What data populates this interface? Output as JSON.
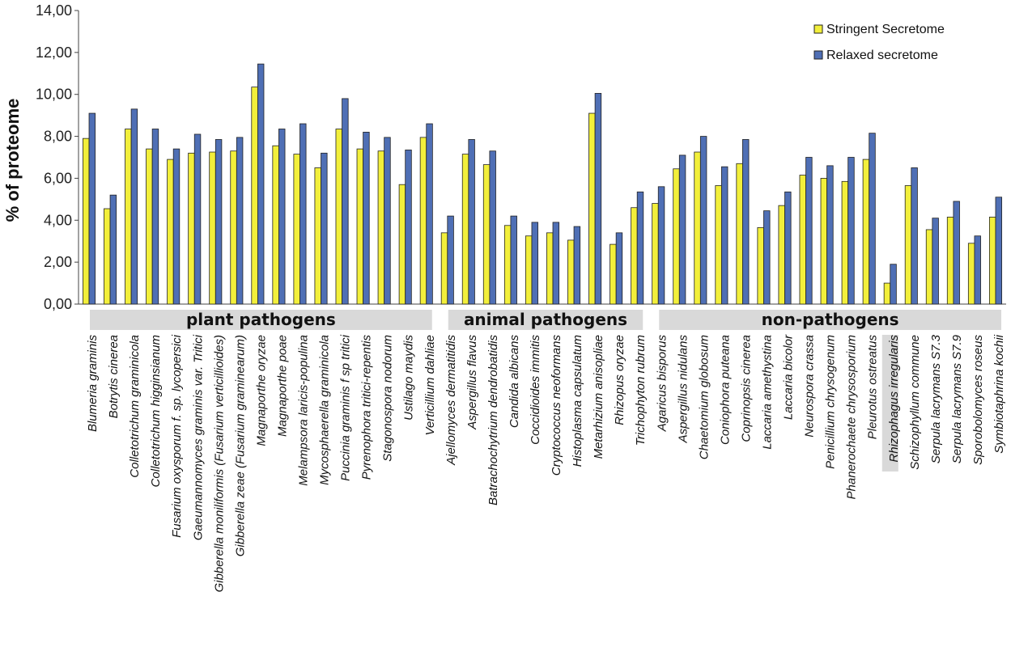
{
  "chart_data": {
    "type": "bar",
    "ylabel": "% of proteome",
    "ylim": [
      0,
      14
    ],
    "yticks": [
      "0,00",
      "2,00",
      "4,00",
      "6,00",
      "8,00",
      "10,00",
      "12,00",
      "14,00"
    ],
    "legend_position": "top-right",
    "colors": {
      "stringent": "#f2ef3b",
      "relaxed": "#4f6fb5",
      "group_band": "#d9d9d9",
      "highlight": "#d9d9d9"
    },
    "categories": [
      "Blumeria graminis",
      "Botrytis cinerea",
      "Colletotrichum graminicola",
      "Colletotrichum higginsianum",
      "Fusarium oxysporum f. sp. lycopersici",
      "Gaeumannomyces graminis var. Tritici",
      "Gibberella moniliformis (Fusarium verticillioides)",
      "Gibberella zeae (Fusarium graminearum)",
      "Magnaporthe oryzae",
      "Magnaporthe poae",
      "Melampsora laricis-populina",
      "Mycosphaerella graminicola",
      "Puccinia graminis f sp tritici",
      "Pyrenophora tritici-repentis",
      "Stagonospora nodorum",
      "Ustilago maydis",
      "Verticillium dahliae",
      "Ajellomyces dermatitidis",
      "Aspergillus flavus",
      "Batrachochytrium dendrobatidis",
      "Candida albicans",
      "Coccidioides immitis",
      "Cryptococcus neoformans",
      "Histoplasma capsulatum",
      "Metarhizium anisopliae",
      "Rhizopus oryzae",
      "Trichophyton rubrum",
      "Agaricus bisporus",
      "Aspergillus nidulans",
      "Chaetomium globosum",
      "Coniophora puteana",
      "Coprinopsis cinerea",
      "Laccaria amethystina",
      "Laccaria bicolor",
      "Neurospora crassa",
      "Penicillium chrysogenum",
      "Phanerochaete chrysosporium",
      "Pleurotus ostreatus",
      "Rhizophagus irregularis",
      "Schizophyllum commune",
      "Serpula lacrymans S7.3",
      "Serpula lacrymans S7.9",
      "Sporobolomyces roseus",
      "Symbiotaphrina kochii"
    ],
    "highlighted_category": "Rhizophagus irregularis",
    "series": [
      {
        "name": "Stringent Secretome",
        "values": [
          7.9,
          4.55,
          8.35,
          7.4,
          6.9,
          7.2,
          7.25,
          7.3,
          10.35,
          7.55,
          7.15,
          6.5,
          8.35,
          7.4,
          7.3,
          5.7,
          7.95,
          3.4,
          7.15,
          6.65,
          3.75,
          3.25,
          3.4,
          3.05,
          9.1,
          2.85,
          4.6,
          4.8,
          6.45,
          7.25,
          5.65,
          6.7,
          3.65,
          4.7,
          6.15,
          6.0,
          5.85,
          6.9,
          1.0,
          5.65,
          3.55,
          4.15,
          2.9,
          4.15
        ]
      },
      {
        "name": "Relaxed secretome",
        "values": [
          9.1,
          5.2,
          9.3,
          8.35,
          7.4,
          8.1,
          7.85,
          7.95,
          11.45,
          8.35,
          8.6,
          7.2,
          9.8,
          8.2,
          7.95,
          7.35,
          8.6,
          4.2,
          7.85,
          7.3,
          4.2,
          3.9,
          3.9,
          3.7,
          10.05,
          3.4,
          5.35,
          5.6,
          7.1,
          8.0,
          6.55,
          7.85,
          4.45,
          5.35,
          7.0,
          6.6,
          7.0,
          8.15,
          1.9,
          6.5,
          4.1,
          4.9,
          3.25,
          5.1
        ]
      }
    ],
    "groups": [
      {
        "label": "plant pathogens",
        "start": 0,
        "end": 16
      },
      {
        "label": "animal pathogens",
        "start": 17,
        "end": 26
      },
      {
        "label": "non-pathogens",
        "start": 27,
        "end": 43
      }
    ]
  }
}
